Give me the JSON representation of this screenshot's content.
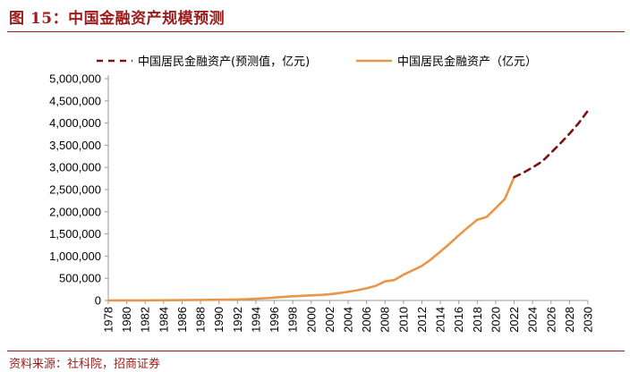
{
  "figure": {
    "title": "图 15：中国金融资产规模预测",
    "source": "资料来源：社科院，招商证券"
  },
  "colors": {
    "actual": "#E8964A",
    "forecast": "#7B1414",
    "brand": "#9B1B1B"
  },
  "chart_data": {
    "type": "line",
    "title": "",
    "xlabel": "",
    "ylabel": "",
    "ylim": [
      0,
      5000000
    ],
    "yticks": [
      0,
      500000,
      1000000,
      1500000,
      2000000,
      2500000,
      3000000,
      3500000,
      4000000,
      4500000,
      5000000
    ],
    "ytick_labels": [
      "0",
      "500,000",
      "1,000,000",
      "1,500,000",
      "2,000,000",
      "2,500,000",
      "3,000,000",
      "3,500,000",
      "4,000,000",
      "4,500,000",
      "5,000,000"
    ],
    "xlim": [
      1978,
      2030
    ],
    "xtick_labels": [
      "1978",
      "1980",
      "1982",
      "1984",
      "1986",
      "1988",
      "1990",
      "1992",
      "1994",
      "1996",
      "1998",
      "2000",
      "2002",
      "2004",
      "2006",
      "2008",
      "2010",
      "2012",
      "2014",
      "2016",
      "2018",
      "2020",
      "2022",
      "2024",
      "2026",
      "2028",
      "2030"
    ],
    "legend_position": "top",
    "series": [
      {
        "name": "中国居民金融资产(预测值，亿元)",
        "style": "dashed",
        "x": [
          2022,
          2023,
          2024,
          2025,
          2026,
          2027,
          2028,
          2029,
          2030
        ],
        "y": [
          2780000,
          2880000,
          3000000,
          3130000,
          3330000,
          3540000,
          3760000,
          4000000,
          4280000
        ]
      },
      {
        "name": "中国居民金融资产（亿元）",
        "style": "solid",
        "x": [
          1978,
          1979,
          1980,
          1981,
          1982,
          1983,
          1984,
          1985,
          1986,
          1987,
          1988,
          1989,
          1990,
          1991,
          1992,
          1993,
          1994,
          1995,
          1996,
          1997,
          1998,
          1999,
          2000,
          2001,
          2002,
          2003,
          2004,
          2005,
          2006,
          2007,
          2008,
          2009,
          2010,
          2011,
          2012,
          2013,
          2014,
          2015,
          2016,
          2017,
          2018,
          2019,
          2020,
          2021,
          2022
        ],
        "y": [
          1000,
          1500,
          2000,
          2500,
          3000,
          4000,
          5000,
          6000,
          8000,
          10000,
          12000,
          14000,
          16000,
          18000,
          22000,
          28000,
          40000,
          50000,
          65000,
          80000,
          95000,
          105000,
          115000,
          125000,
          140000,
          165000,
          195000,
          230000,
          275000,
          330000,
          430000,
          460000,
          580000,
          680000,
          780000,
          930000,
          1100000,
          1280000,
          1470000,
          1650000,
          1820000,
          1880000,
          2080000,
          2290000,
          2780000
        ]
      }
    ]
  }
}
